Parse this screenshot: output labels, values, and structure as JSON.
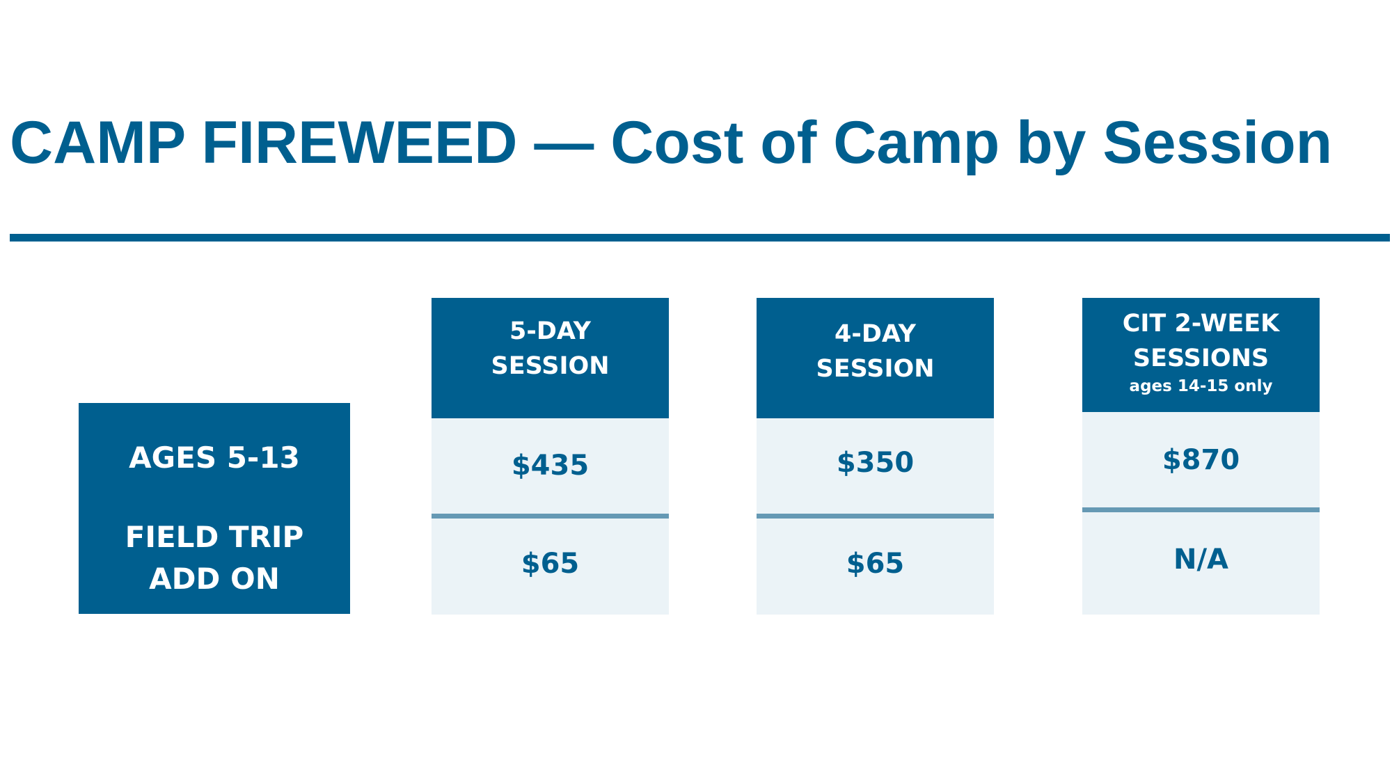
{
  "title": "CAMP FIREWEED — Cost of Camp by Session",
  "colors": {
    "primary": "#005f8f",
    "cell_background": "#ebf3f7",
    "divider": "#6599b4",
    "background": "#ffffff"
  },
  "row_labels": {
    "ages": "AGES 5-13",
    "field_trip_line1": "FIELD TRIP",
    "field_trip_line2": "ADD ON"
  },
  "sessions": [
    {
      "header_line1": "5-DAY",
      "header_line2": "SESSION",
      "price": "$435",
      "field_trip": "$65"
    },
    {
      "header_line1": "4-DAY",
      "header_line2": "SESSION",
      "price": "$350",
      "field_trip": "$65"
    },
    {
      "header_line1": "CIT 2-WEEK",
      "header_line2": "SESSIONS",
      "note": "ages 14-15 only",
      "price": "$870",
      "field_trip": "N/A"
    }
  ]
}
